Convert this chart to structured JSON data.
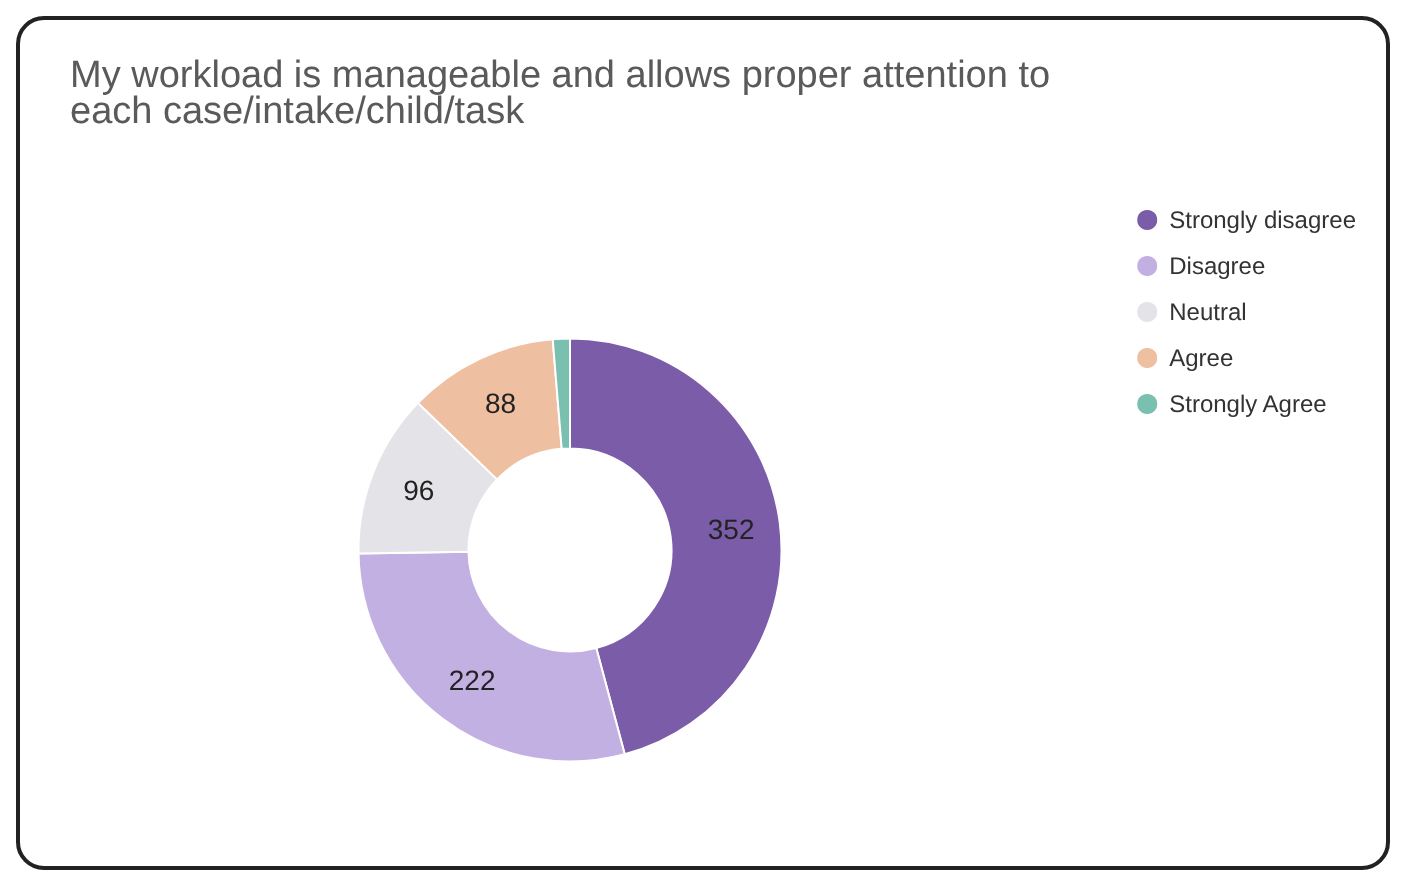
{
  "chart_data": {
    "type": "donut",
    "title": "My workload is manageable and allows proper attention to\neach case/intake/child/task",
    "categories": [
      "Strongly disagree",
      "Disagree",
      "Neutral",
      "Agree",
      "Strongly Agree"
    ],
    "values": [
      352,
      222,
      96,
      88,
      10
    ],
    "colors": [
      "#7b5ca8",
      "#c3b0e2",
      "#e4e3e8",
      "#efbfa1",
      "#79c0b1"
    ],
    "value_labels": [
      "352",
      "222",
      "96",
      "88",
      null
    ],
    "legend": "top right"
  }
}
